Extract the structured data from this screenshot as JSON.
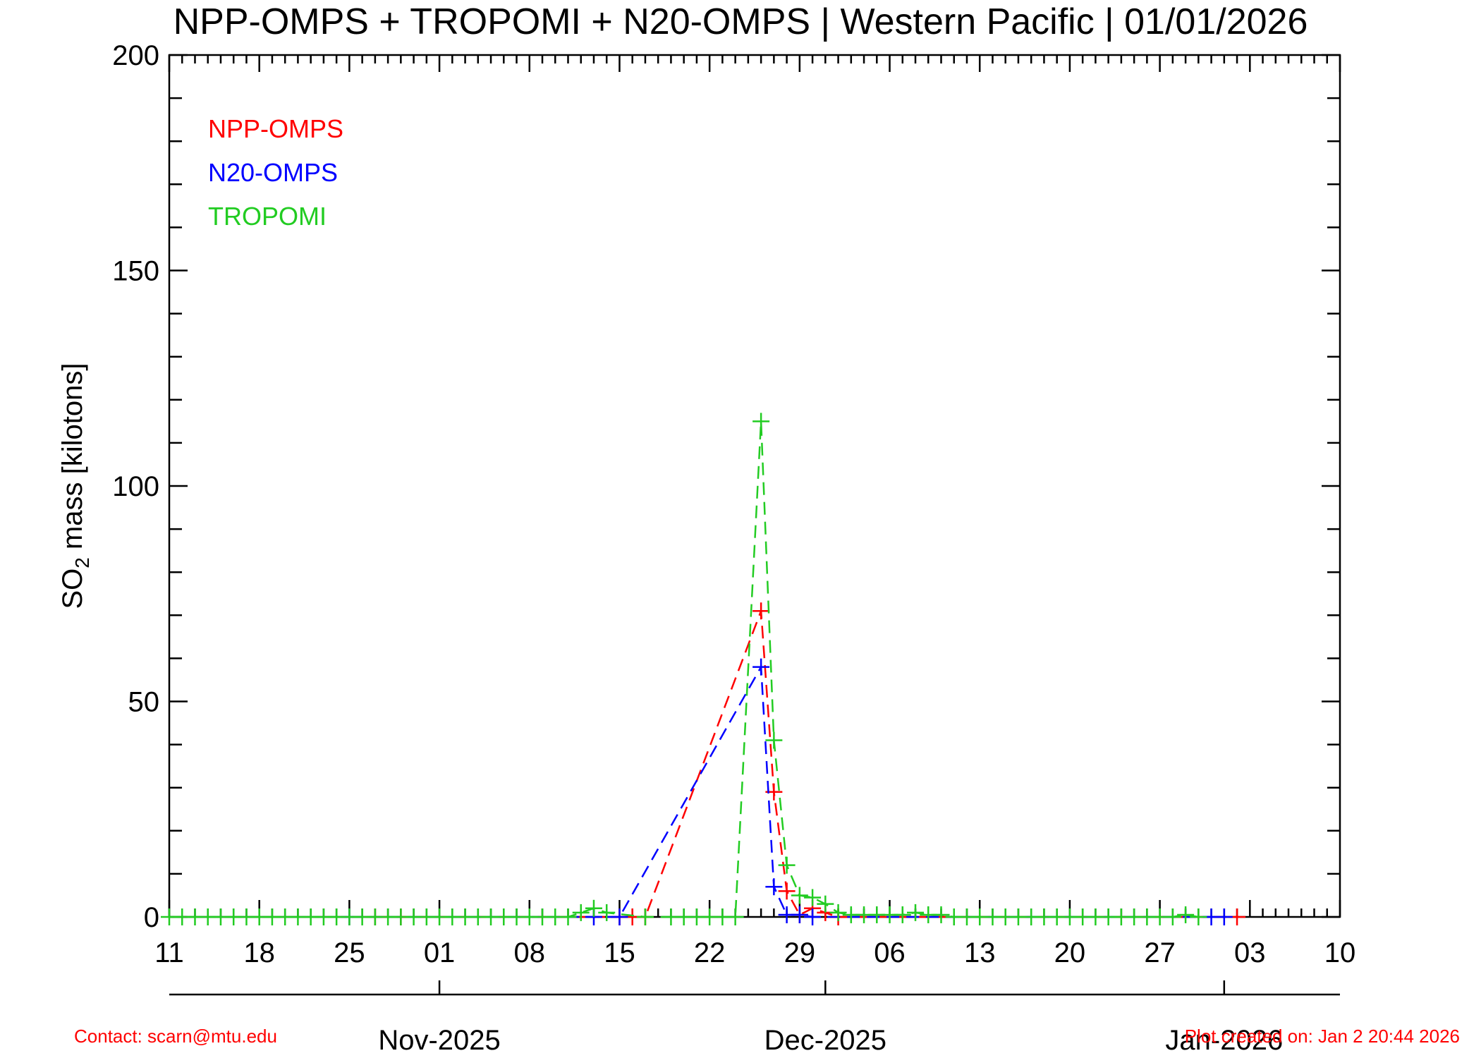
{
  "chart_data": {
    "type": "line",
    "title": "NPP-OMPS + TROPOMI + N20-OMPS | Western Pacific | 01/01/2026",
    "ylabel": "SO2 mass [kilotons]",
    "ylabel_parts": {
      "pre": "SO",
      "sub": "2",
      "post": " mass [kilotons]"
    },
    "ylim": [
      0,
      200
    ],
    "yticks": [
      0,
      50,
      100,
      150,
      200
    ],
    "x_range": [
      "2025-10-11",
      "2026-01-10"
    ],
    "xticks": [
      {
        "date": "2025-10-11",
        "label": "11"
      },
      {
        "date": "2025-10-18",
        "label": "18"
      },
      {
        "date": "2025-10-25",
        "label": "25"
      },
      {
        "date": "2025-11-01",
        "label": "01"
      },
      {
        "date": "2025-11-08",
        "label": "08"
      },
      {
        "date": "2025-11-15",
        "label": "15"
      },
      {
        "date": "2025-11-22",
        "label": "22"
      },
      {
        "date": "2025-11-29",
        "label": "29"
      },
      {
        "date": "2025-12-06",
        "label": "06"
      },
      {
        "date": "2025-12-13",
        "label": "13"
      },
      {
        "date": "2025-12-20",
        "label": "20"
      },
      {
        "date": "2025-12-27",
        "label": "27"
      },
      {
        "date": "2026-01-03",
        "label": "03"
      },
      {
        "date": "2026-01-10",
        "label": "10"
      }
    ],
    "months": [
      {
        "date": "2025-11-01",
        "label": "Nov-2025"
      },
      {
        "date": "2025-12-01",
        "label": "Dec-2025"
      },
      {
        "date": "2026-01-01",
        "label": "Jan-2026"
      }
    ],
    "grid": false,
    "legend_position": "top-left",
    "series": [
      {
        "name": "NPP-OMPS",
        "color": "#ff0000",
        "points": [
          [
            "2025-10-27",
            0
          ],
          [
            "2025-10-29",
            0
          ],
          [
            "2025-11-15",
            0
          ],
          [
            "2025-11-16",
            0
          ],
          [
            "2025-11-17",
            0
          ],
          [
            "2025-11-26",
            71
          ],
          [
            "2025-11-27",
            29
          ],
          [
            "2025-11-28",
            6
          ],
          [
            "2025-11-29",
            0.5
          ],
          [
            "2025-11-30",
            2
          ],
          [
            "2025-12-01",
            1
          ],
          [
            "2025-12-02",
            0
          ],
          [
            "2026-01-02",
            0
          ]
        ]
      },
      {
        "name": "N20-OMPS",
        "color": "#0000ff",
        "points": [
          [
            "2025-10-25",
            0
          ],
          [
            "2025-11-13",
            0
          ],
          [
            "2025-11-15",
            0
          ],
          [
            "2025-11-26",
            58
          ],
          [
            "2025-11-27",
            7
          ],
          [
            "2025-11-28",
            0.5
          ],
          [
            "2025-11-29",
            0.5
          ],
          [
            "2025-11-30",
            0
          ],
          [
            "2025-12-31",
            0
          ],
          [
            "2026-01-01",
            0
          ]
        ]
      },
      {
        "name": "TROPOMI",
        "color": "#22cc22",
        "points": [
          [
            "2025-10-11",
            0
          ],
          [
            "2025-10-12",
            0
          ],
          [
            "2025-10-13",
            0
          ],
          [
            "2025-10-14",
            0
          ],
          [
            "2025-10-15",
            0
          ],
          [
            "2025-10-16",
            0
          ],
          [
            "2025-10-17",
            0
          ],
          [
            "2025-10-18",
            0
          ],
          [
            "2025-10-19",
            0
          ],
          [
            "2025-10-20",
            0
          ],
          [
            "2025-10-21",
            0
          ],
          [
            "2025-10-22",
            0
          ],
          [
            "2025-10-23",
            0
          ],
          [
            "2025-10-24",
            0
          ],
          [
            "2025-10-25",
            0
          ],
          [
            "2025-10-26",
            0
          ],
          [
            "2025-10-27",
            0
          ],
          [
            "2025-10-28",
            0
          ],
          [
            "2025-10-29",
            0
          ],
          [
            "2025-10-30",
            0
          ],
          [
            "2025-10-31",
            0
          ],
          [
            "2025-11-01",
            0
          ],
          [
            "2025-11-02",
            0
          ],
          [
            "2025-11-03",
            0
          ],
          [
            "2025-11-04",
            0
          ],
          [
            "2025-11-05",
            0
          ],
          [
            "2025-11-06",
            0
          ],
          [
            "2025-11-07",
            0
          ],
          [
            "2025-11-08",
            0
          ],
          [
            "2025-11-09",
            0
          ],
          [
            "2025-11-10",
            0
          ],
          [
            "2025-11-11",
            0
          ],
          [
            "2025-11-12",
            1
          ],
          [
            "2025-11-13",
            2
          ],
          [
            "2025-11-14",
            1
          ],
          [
            "2025-11-17",
            0
          ],
          [
            "2025-11-19",
            0
          ],
          [
            "2025-11-20",
            0
          ],
          [
            "2025-11-21",
            0
          ],
          [
            "2025-11-22",
            0
          ],
          [
            "2025-11-23",
            0
          ],
          [
            "2025-11-24",
            0
          ],
          [
            "2025-11-26",
            115
          ],
          [
            "2025-11-27",
            41
          ],
          [
            "2025-11-28",
            12
          ],
          [
            "2025-11-29",
            5
          ],
          [
            "2025-11-30",
            4.5
          ],
          [
            "2025-12-01",
            3
          ],
          [
            "2025-12-02",
            1
          ],
          [
            "2025-12-03",
            0.5
          ],
          [
            "2025-12-04",
            0.5
          ],
          [
            "2025-12-05",
            0.5
          ],
          [
            "2025-12-06",
            0.5
          ],
          [
            "2025-12-07",
            0.5
          ],
          [
            "2025-12-08",
            1
          ],
          [
            "2025-12-09",
            0.5
          ],
          [
            "2025-12-10",
            0.5
          ],
          [
            "2025-12-11",
            0
          ],
          [
            "2025-12-12",
            0
          ],
          [
            "2025-12-13",
            0
          ],
          [
            "2025-12-14",
            0
          ],
          [
            "2025-12-15",
            0
          ],
          [
            "2025-12-16",
            0
          ],
          [
            "2025-12-17",
            0
          ],
          [
            "2025-12-18",
            0
          ],
          [
            "2025-12-19",
            0
          ],
          [
            "2025-12-20",
            0
          ],
          [
            "2025-12-21",
            0
          ],
          [
            "2025-12-22",
            0
          ],
          [
            "2025-12-23",
            0
          ],
          [
            "2025-12-24",
            0
          ],
          [
            "2025-12-25",
            0
          ],
          [
            "2025-12-26",
            0
          ],
          [
            "2025-12-27",
            0
          ],
          [
            "2025-12-28",
            0
          ],
          [
            "2025-12-29",
            0.5
          ],
          [
            "2025-12-30",
            0
          ]
        ]
      }
    ]
  },
  "footer": {
    "contact": "Contact: scarn@mtu.edu",
    "created": "Plot created on: Jan  2 20:44 2026",
    "color": "#ff0000"
  }
}
